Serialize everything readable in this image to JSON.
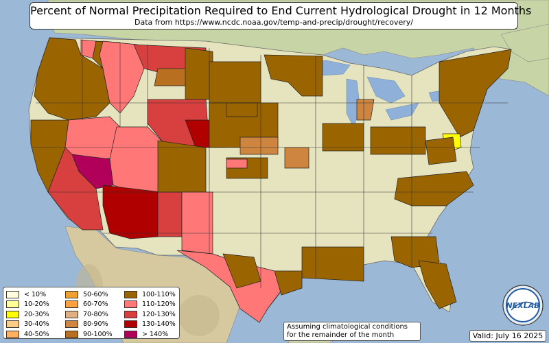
{
  "title": "Percent of Normal Precipitation Required to End Current Hydrological Drought in 12 Months",
  "subtitle": "Data from https://www.ncdc.noaa.gov/temp-and-precip/drought/recovery/",
  "legend": {
    "items": [
      {
        "label": "< 10%",
        "color": "#ffffdd"
      },
      {
        "label": "10-20%",
        "color": "#ffff99"
      },
      {
        "label": "20-30%",
        "color": "#ffff00"
      },
      {
        "label": "30-40%",
        "color": "#ffcc88"
      },
      {
        "label": "40-50%",
        "color": "#ffb060"
      },
      {
        "label": "50-60%",
        "color": "#f0a030"
      },
      {
        "label": "60-70%",
        "color": "#ffa040"
      },
      {
        "label": "70-80%",
        "color": "#e0b080"
      },
      {
        "label": "80-90%",
        "color": "#cd853f"
      },
      {
        "label": "90-100%",
        "color": "#b87020"
      },
      {
        "label": "100-110%",
        "color": "#9a6400"
      },
      {
        "label": "110-120%",
        "color": "#ff7777"
      },
      {
        "label": "120-130%",
        "color": "#d84040"
      },
      {
        "label": "130-140%",
        "color": "#b00000"
      },
      {
        "label": "> 140%",
        "color": "#b0005a"
      }
    ]
  },
  "footnote": {
    "line1": "Assuming climatological conditions",
    "line2": "for the remainder of the month"
  },
  "valid_label": "Valid: July 16 2025",
  "logo": {
    "text": "NEXLAB"
  },
  "colors": {
    "ocean": "#9bb8d6",
    "land": "#e6e4bf",
    "land_green": "#c9d6a3",
    "mountain": "#c8b88a",
    "lakes": "#8fb0d8"
  }
}
